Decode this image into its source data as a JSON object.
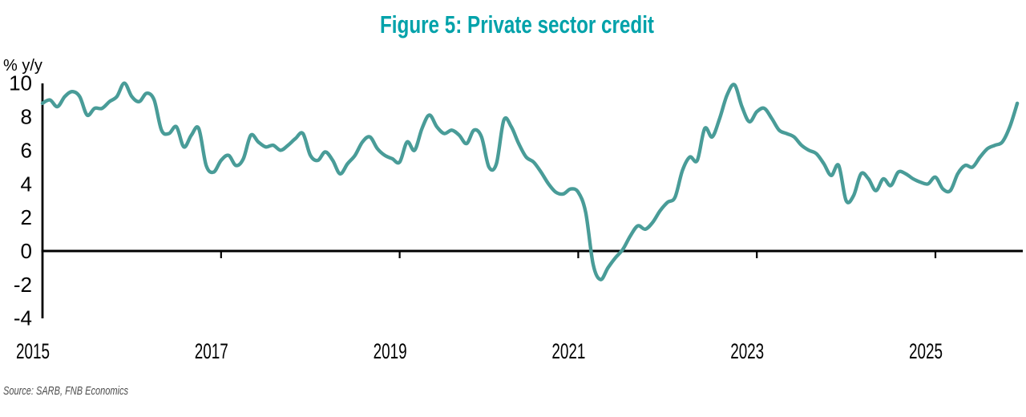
{
  "title": "Figure 5: Private sector credit",
  "y_axis_unit_label": "% y/y",
  "source_note": "Source: SARB, FNB Economics",
  "colors": {
    "title_text": "#00A2AA",
    "series_line": "#499C98",
    "axis": "#000000",
    "tick_label": "#000000",
    "source_text": "#4D4D4D",
    "background": "#FFFFFF"
  },
  "chart_data": {
    "type": "line",
    "title": "Figure 5: Private sector credit",
    "ylabel": "% y/y",
    "ylim": [
      -4,
      10
    ],
    "y_ticks": [
      10,
      8,
      6,
      4,
      2,
      0,
      -2,
      -4
    ],
    "x_tick_labels": [
      "2015",
      "2017",
      "2019",
      "2021",
      "2023",
      "2025"
    ],
    "x_start": "2015-01",
    "x_end": "2025-12",
    "frequency": "monthly",
    "grid": false,
    "legend": false,
    "zero_baseline": true,
    "source": "Source: SARB, FNB Economics",
    "series": [
      {
        "name": "Private sector credit extension",
        "unit": "% y/y",
        "values": [
          8.8,
          9.0,
          8.6,
          9.2,
          9.5,
          9.2,
          8.1,
          8.5,
          8.5,
          8.9,
          9.2,
          10.0,
          9.2,
          8.9,
          9.4,
          9.0,
          7.2,
          7.0,
          7.4,
          6.2,
          6.9,
          7.3,
          5.1,
          4.7,
          5.4,
          5.7,
          5.1,
          5.5,
          6.9,
          6.5,
          6.2,
          6.3,
          6.0,
          6.3,
          6.7,
          7.0,
          5.7,
          5.4,
          5.9,
          5.4,
          4.6,
          5.2,
          5.7,
          6.5,
          6.8,
          6.1,
          5.7,
          5.5,
          5.3,
          6.5,
          6.0,
          7.3,
          8.1,
          7.4,
          7.0,
          7.2,
          6.9,
          6.4,
          7.2,
          6.8,
          5.0,
          5.2,
          7.8,
          7.4,
          6.4,
          5.6,
          5.3,
          4.7,
          4.0,
          3.5,
          3.4,
          3.7,
          3.5,
          2.3,
          -0.8,
          -1.7,
          -1.0,
          -0.4,
          0.1,
          0.9,
          1.5,
          1.3,
          1.7,
          2.4,
          2.9,
          3.2,
          4.8,
          5.6,
          5.4,
          7.3,
          6.8,
          7.9,
          9.3,
          9.9,
          8.6,
          7.7,
          8.3,
          8.5,
          7.9,
          7.2,
          7.0,
          6.8,
          6.3,
          6.0,
          5.8,
          5.2,
          4.5,
          5.1,
          3.0,
          3.3,
          4.6,
          4.3,
          3.6,
          4.3,
          3.9,
          4.7,
          4.6,
          4.3,
          4.1,
          4.0,
          4.4,
          3.7,
          3.6,
          4.6,
          5.1,
          5.0,
          5.6,
          6.1,
          6.3,
          6.5,
          7.4,
          8.8
        ]
      }
    ]
  }
}
